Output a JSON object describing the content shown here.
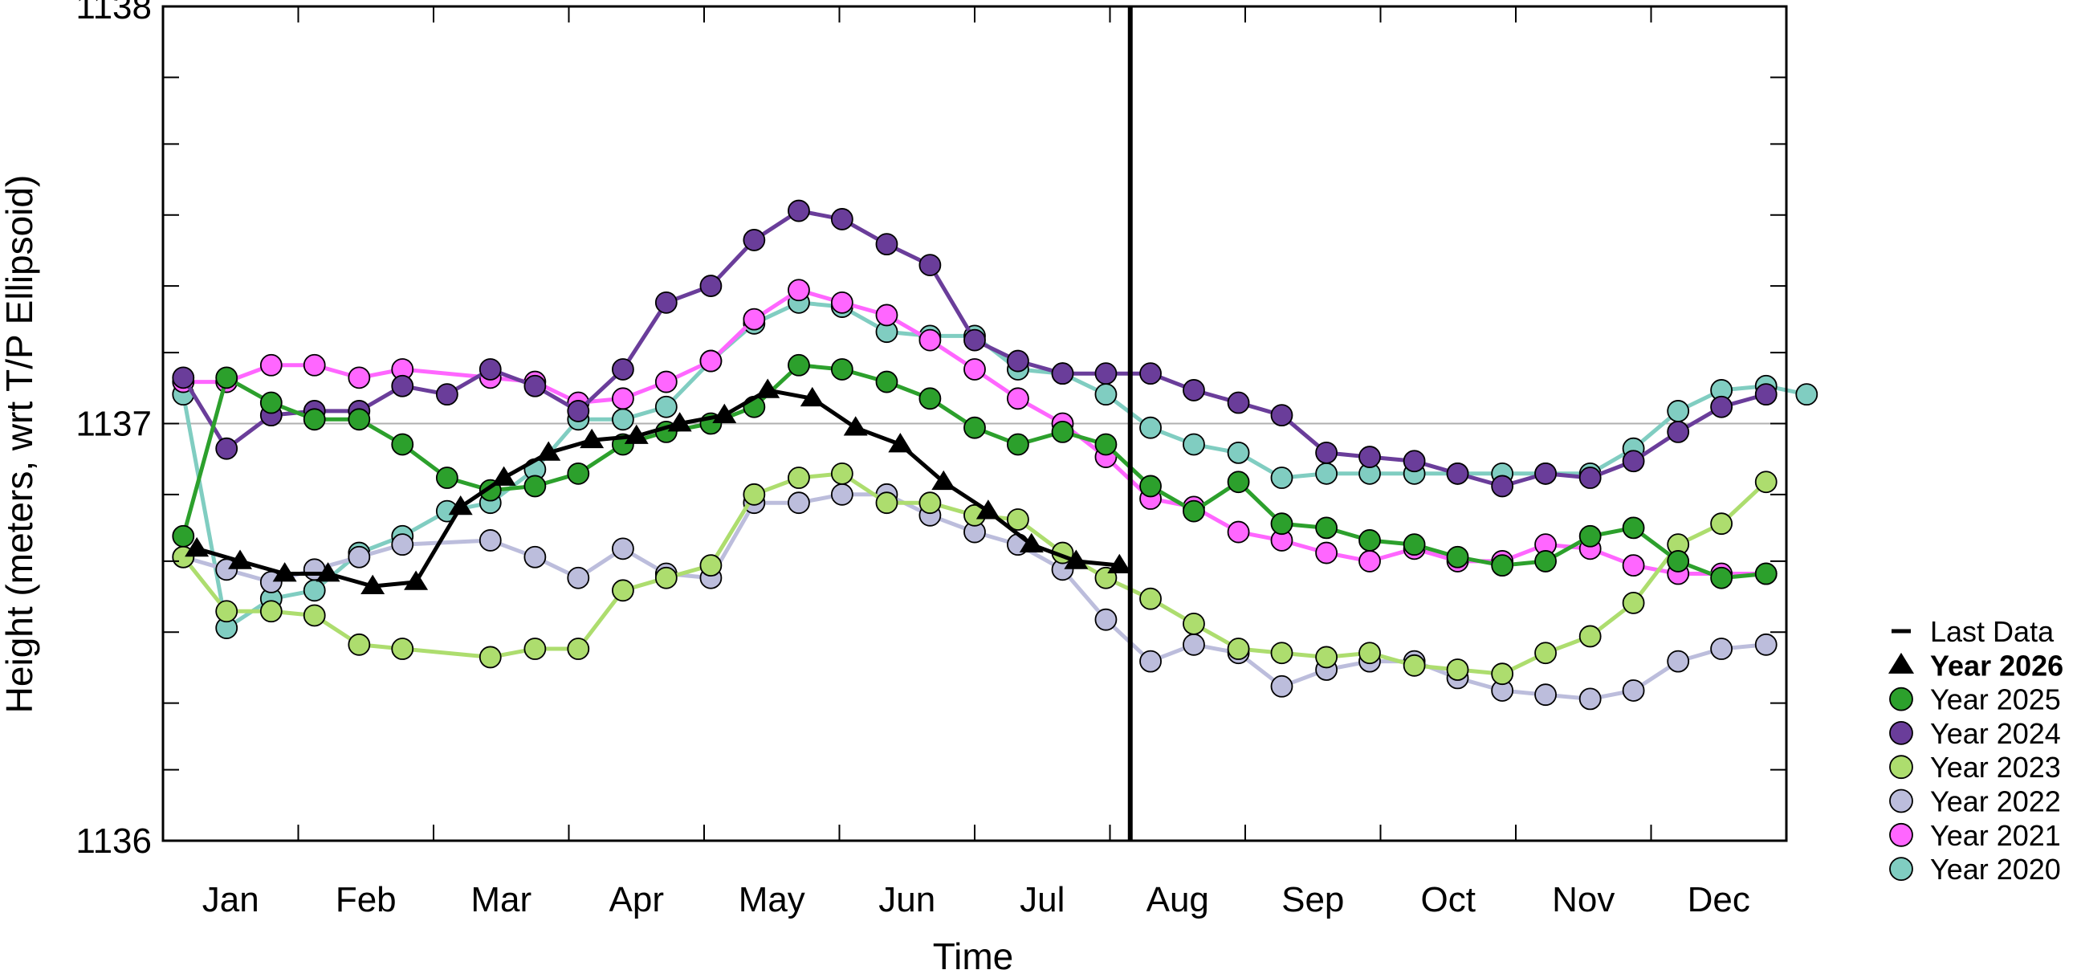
{
  "chart_data": {
    "type": "line",
    "xlabel": "Time",
    "ylabel": "Height (meters, wrt T/P Ellipsoid)",
    "ylim": [
      1136,
      1138
    ],
    "y_ticks_labeled": [
      "1136",
      "1137",
      "1138"
    ],
    "y_tick_values": [
      1136,
      1137,
      1138
    ],
    "y_minor_ticks": [
      1136.17,
      1136.33,
      1136.5,
      1136.67,
      1136.83,
      1137.17,
      1137.33,
      1137.5,
      1137.67,
      1137.83
    ],
    "xlim": [
      0,
      12
    ],
    "x_tick_labels": [
      "Jan",
      "Feb",
      "Mar",
      "Apr",
      "May",
      "Jun",
      "Jul",
      "Aug",
      "Sep",
      "Oct",
      "Nov",
      "Dec"
    ],
    "reference_line": 1137,
    "last_data_marker": 7.15,
    "legend_position": "right",
    "legend": {
      "last_data_label": "Last Data"
    },
    "series": [
      {
        "name": "Year 2026",
        "marker": "triangle",
        "color": "#000000",
        "bold": true,
        "points": [
          [
            0.25,
            1136.7
          ],
          [
            0.57,
            1136.67
          ],
          [
            0.9,
            1136.64
          ],
          [
            1.22,
            1136.64
          ],
          [
            1.55,
            1136.61
          ],
          [
            1.87,
            1136.62
          ],
          [
            2.2,
            1136.8
          ],
          [
            2.52,
            1136.87
          ],
          [
            2.85,
            1136.93
          ],
          [
            3.17,
            1136.96
          ],
          [
            3.5,
            1136.97
          ],
          [
            3.82,
            1137.0
          ],
          [
            4.15,
            1137.02
          ],
          [
            4.47,
            1137.08
          ],
          [
            4.8,
            1137.06
          ],
          [
            5.12,
            1136.99
          ],
          [
            5.45,
            1136.95
          ],
          [
            5.77,
            1136.86
          ],
          [
            6.1,
            1136.79
          ],
          [
            6.42,
            1136.71
          ],
          [
            6.75,
            1136.67
          ],
          [
            7.07,
            1136.66
          ]
        ]
      },
      {
        "name": "Year 2025",
        "marker": "circle",
        "color": "#2ca02c",
        "points": [
          [
            0.15,
            1136.73
          ],
          [
            0.47,
            1137.11
          ],
          [
            0.8,
            1137.05
          ],
          [
            1.12,
            1137.01
          ],
          [
            1.45,
            1137.01
          ],
          [
            1.77,
            1136.95
          ],
          [
            2.1,
            1136.87
          ],
          [
            2.42,
            1136.84
          ],
          [
            2.75,
            1136.85
          ],
          [
            3.07,
            1136.88
          ],
          [
            3.4,
            1136.95
          ],
          [
            3.72,
            1136.98
          ],
          [
            4.05,
            1137.0
          ],
          [
            4.37,
            1137.04
          ],
          [
            4.7,
            1137.14
          ],
          [
            5.02,
            1137.13
          ],
          [
            5.35,
            1137.1
          ],
          [
            5.67,
            1137.06
          ],
          [
            6.0,
            1136.99
          ],
          [
            6.32,
            1136.95
          ],
          [
            6.65,
            1136.98
          ],
          [
            6.97,
            1136.95
          ],
          [
            7.3,
            1136.85
          ],
          [
            7.62,
            1136.79
          ],
          [
            7.95,
            1136.86
          ],
          [
            8.27,
            1136.76
          ],
          [
            8.6,
            1136.75
          ],
          [
            8.92,
            1136.72
          ],
          [
            9.25,
            1136.71
          ],
          [
            9.57,
            1136.68
          ],
          [
            9.9,
            1136.66
          ],
          [
            10.22,
            1136.67
          ],
          [
            10.55,
            1136.73
          ],
          [
            10.87,
            1136.75
          ],
          [
            11.2,
            1136.67
          ],
          [
            11.52,
            1136.63
          ],
          [
            11.85,
            1136.64
          ]
        ]
      },
      {
        "name": "Year 2024",
        "marker": "circle",
        "color": "#6a3d9a",
        "points": [
          [
            0.15,
            1137.11
          ],
          [
            0.47,
            1136.94
          ],
          [
            0.8,
            1137.02
          ],
          [
            1.12,
            1137.03
          ],
          [
            1.45,
            1137.03
          ],
          [
            1.77,
            1137.09
          ],
          [
            2.1,
            1137.07
          ],
          [
            2.42,
            1137.13
          ],
          [
            2.75,
            1137.09
          ],
          [
            3.07,
            1137.03
          ],
          [
            3.4,
            1137.13
          ],
          [
            3.72,
            1137.29
          ],
          [
            4.05,
            1137.33
          ],
          [
            4.37,
            1137.44
          ],
          [
            4.7,
            1137.51
          ],
          [
            5.02,
            1137.49
          ],
          [
            5.35,
            1137.43
          ],
          [
            5.67,
            1137.38
          ],
          [
            6.0,
            1137.2
          ],
          [
            6.32,
            1137.15
          ],
          [
            6.65,
            1137.12
          ],
          [
            6.97,
            1137.12
          ],
          [
            7.3,
            1137.12
          ],
          [
            7.62,
            1137.08
          ],
          [
            7.95,
            1137.05
          ],
          [
            8.27,
            1137.02
          ],
          [
            8.6,
            1136.93
          ],
          [
            8.92,
            1136.92
          ],
          [
            9.25,
            1136.91
          ],
          [
            9.57,
            1136.88
          ],
          [
            9.9,
            1136.85
          ],
          [
            10.22,
            1136.88
          ],
          [
            10.55,
            1136.87
          ],
          [
            10.87,
            1136.91
          ],
          [
            11.2,
            1136.98
          ],
          [
            11.52,
            1137.04
          ],
          [
            11.85,
            1137.07
          ]
        ]
      },
      {
        "name": "Year 2023",
        "marker": "circle",
        "color": "#addd6e",
        "points": [
          [
            0.15,
            1136.68
          ],
          [
            0.47,
            1136.55
          ],
          [
            0.8,
            1136.55
          ],
          [
            1.12,
            1136.54
          ],
          [
            1.45,
            1136.47
          ],
          [
            1.77,
            1136.46
          ],
          [
            2.42,
            1136.44
          ],
          [
            2.75,
            1136.46
          ],
          [
            3.07,
            1136.46
          ],
          [
            3.4,
            1136.6
          ],
          [
            3.72,
            1136.63
          ],
          [
            4.05,
            1136.66
          ],
          [
            4.37,
            1136.83
          ],
          [
            4.7,
            1136.87
          ],
          [
            5.02,
            1136.88
          ],
          [
            5.35,
            1136.81
          ],
          [
            5.67,
            1136.81
          ],
          [
            6.0,
            1136.78
          ],
          [
            6.32,
            1136.77
          ],
          [
            6.65,
            1136.69
          ],
          [
            6.97,
            1136.63
          ],
          [
            7.3,
            1136.58
          ],
          [
            7.62,
            1136.52
          ],
          [
            7.95,
            1136.46
          ],
          [
            8.27,
            1136.45
          ],
          [
            8.6,
            1136.44
          ],
          [
            8.92,
            1136.45
          ],
          [
            9.25,
            1136.42
          ],
          [
            9.57,
            1136.41
          ],
          [
            9.9,
            1136.4
          ],
          [
            10.22,
            1136.45
          ],
          [
            10.55,
            1136.49
          ],
          [
            10.87,
            1136.57
          ],
          [
            11.2,
            1136.71
          ],
          [
            11.52,
            1136.76
          ],
          [
            11.85,
            1136.86
          ]
        ]
      },
      {
        "name": "Year 2022",
        "marker": "circle",
        "color": "#bcbddc",
        "points": [
          [
            0.15,
            1136.68
          ],
          [
            0.47,
            1136.65
          ],
          [
            0.8,
            1136.62
          ],
          [
            1.12,
            1136.65
          ],
          [
            1.45,
            1136.68
          ],
          [
            1.77,
            1136.71
          ],
          [
            2.42,
            1136.72
          ],
          [
            2.75,
            1136.68
          ],
          [
            3.07,
            1136.63
          ],
          [
            3.4,
            1136.7
          ],
          [
            3.72,
            1136.64
          ],
          [
            4.05,
            1136.63
          ],
          [
            4.37,
            1136.81
          ],
          [
            4.7,
            1136.81
          ],
          [
            5.02,
            1136.83
          ],
          [
            5.35,
            1136.83
          ],
          [
            5.67,
            1136.78
          ],
          [
            6.0,
            1136.74
          ],
          [
            6.32,
            1136.71
          ],
          [
            6.65,
            1136.65
          ],
          [
            6.97,
            1136.53
          ],
          [
            7.3,
            1136.43
          ],
          [
            7.62,
            1136.47
          ],
          [
            7.95,
            1136.45
          ],
          [
            8.27,
            1136.37
          ],
          [
            8.6,
            1136.41
          ],
          [
            8.92,
            1136.43
          ],
          [
            9.25,
            1136.43
          ],
          [
            9.57,
            1136.39
          ],
          [
            9.9,
            1136.36
          ],
          [
            10.22,
            1136.35
          ],
          [
            10.55,
            1136.34
          ],
          [
            10.87,
            1136.36
          ],
          [
            11.2,
            1136.43
          ],
          [
            11.52,
            1136.46
          ],
          [
            11.85,
            1136.47
          ]
        ]
      },
      {
        "name": "Year 2021",
        "marker": "circle",
        "color": "#ff66ff",
        "points": [
          [
            0.15,
            1137.1
          ],
          [
            0.47,
            1137.1
          ],
          [
            0.8,
            1137.14
          ],
          [
            1.12,
            1137.14
          ],
          [
            1.45,
            1137.11
          ],
          [
            1.77,
            1137.13
          ],
          [
            2.42,
            1137.11
          ],
          [
            2.75,
            1137.1
          ],
          [
            3.07,
            1137.05
          ],
          [
            3.4,
            1137.06
          ],
          [
            3.72,
            1137.1
          ],
          [
            4.05,
            1137.15
          ],
          [
            4.37,
            1137.25
          ],
          [
            4.7,
            1137.32
          ],
          [
            5.02,
            1137.29
          ],
          [
            5.35,
            1137.26
          ],
          [
            5.67,
            1137.2
          ],
          [
            6.0,
            1137.13
          ],
          [
            6.32,
            1137.06
          ],
          [
            6.65,
            1137.0
          ],
          [
            6.97,
            1136.92
          ],
          [
            7.3,
            1136.82
          ],
          [
            7.62,
            1136.8
          ],
          [
            7.95,
            1136.74
          ],
          [
            8.27,
            1136.72
          ],
          [
            8.6,
            1136.69
          ],
          [
            8.92,
            1136.67
          ],
          [
            9.25,
            1136.7
          ],
          [
            9.57,
            1136.67
          ],
          [
            9.9,
            1136.67
          ],
          [
            10.22,
            1136.71
          ],
          [
            10.55,
            1136.7
          ],
          [
            10.87,
            1136.66
          ],
          [
            11.2,
            1136.64
          ],
          [
            11.52,
            1136.64
          ],
          [
            11.85,
            1136.64
          ]
        ]
      },
      {
        "name": "Year 2020",
        "marker": "circle",
        "color": "#80cdc1",
        "points": [
          [
            0.15,
            1137.07
          ],
          [
            0.47,
            1136.51
          ],
          [
            0.8,
            1136.58
          ],
          [
            1.12,
            1136.6
          ],
          [
            1.45,
            1136.69
          ],
          [
            1.77,
            1136.73
          ],
          [
            2.1,
            1136.79
          ],
          [
            2.42,
            1136.81
          ],
          [
            2.75,
            1136.89
          ],
          [
            3.07,
            1137.01
          ],
          [
            3.4,
            1137.01
          ],
          [
            3.72,
            1137.04
          ],
          [
            4.05,
            1137.15
          ],
          [
            4.37,
            1137.24
          ],
          [
            4.7,
            1137.29
          ],
          [
            5.02,
            1137.28
          ],
          [
            5.35,
            1137.22
          ],
          [
            5.67,
            1137.21
          ],
          [
            6.0,
            1137.21
          ],
          [
            6.32,
            1137.13
          ],
          [
            6.65,
            1137.12
          ],
          [
            6.97,
            1137.07
          ],
          [
            7.3,
            1136.99
          ],
          [
            7.62,
            1136.95
          ],
          [
            7.95,
            1136.93
          ],
          [
            8.27,
            1136.87
          ],
          [
            8.6,
            1136.88
          ],
          [
            8.92,
            1136.88
          ],
          [
            9.25,
            1136.88
          ],
          [
            9.57,
            1136.88
          ],
          [
            9.9,
            1136.88
          ],
          [
            10.22,
            1136.88
          ],
          [
            10.55,
            1136.88
          ],
          [
            10.87,
            1136.94
          ],
          [
            11.2,
            1137.03
          ],
          [
            11.52,
            1137.08
          ],
          [
            11.85,
            1137.09
          ],
          [
            12.15,
            1137.07
          ]
        ]
      }
    ]
  }
}
